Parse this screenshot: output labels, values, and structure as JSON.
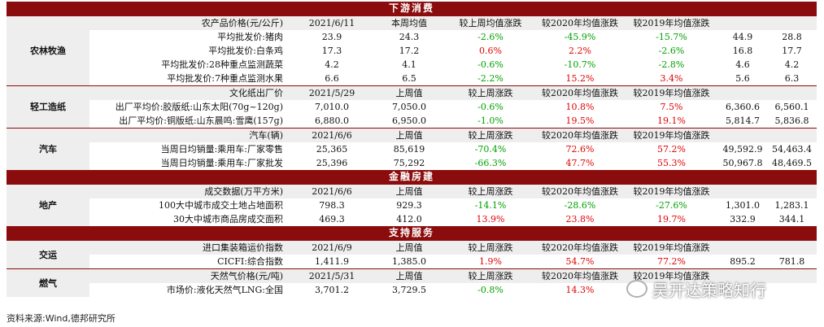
{
  "sections": {
    "downstream": "下游消费",
    "finance": "金融房建",
    "support": "支持服务"
  },
  "agri": {
    "category": "农林牧渔",
    "header": [
      "农产品价格(元/公斤)",
      "2021/6/11",
      "本周均值",
      "较上周均值涨跌",
      "较2020年均值涨跌",
      "较2019年均值涨跌",
      "",
      ""
    ],
    "rows": [
      [
        "平均批发价:猪肉",
        "23.9",
        "24.3",
        "-2.6%",
        "-45.9%",
        "-15.7%",
        "44.9",
        "28.8"
      ],
      [
        "平均批发价:白条鸡",
        "17.3",
        "17.2",
        "0.6%",
        "2.2%",
        "-2.6%",
        "16.8",
        "17.7"
      ],
      [
        "平均批发价:28种重点监测蔬菜",
        "4.2",
        "4.1",
        "-0.6%",
        "-10.7%",
        "-2.8%",
        "4.6",
        "4.2"
      ],
      [
        "平均批发价:7种重点监测水果",
        "6.6",
        "6.5",
        "-2.2%",
        "15.2%",
        "3.4%",
        "5.6",
        "6.3"
      ]
    ]
  },
  "paper": {
    "category": "轻工造纸",
    "header": [
      "文化纸出厂价",
      "2021/5/29",
      "上周值",
      "较上周涨跌",
      "较2020年均值涨跌",
      "较2019年均值涨跌",
      "",
      ""
    ],
    "rows": [
      [
        "出厂平均价:胶版纸:山东太阳(70g~120g)",
        "7,010.0",
        "7,050.0",
        "-0.6%",
        "10.8%",
        "7.5%",
        "6,360.6",
        "6,560.1"
      ],
      [
        "出厂平均价:铜版纸:山东晨鸣:雪鹰(157g)",
        "6,880.0",
        "6,950.0",
        "-1.0%",
        "19.5%",
        "19.1%",
        "5,814.7",
        "5,836.8"
      ]
    ]
  },
  "auto": {
    "category": "汽车",
    "header": [
      "汽车(辆)",
      "2021/6/6",
      "上周值",
      "较上周涨跌",
      "较2020年均值涨跌",
      "较2019年均值涨跌",
      "",
      ""
    ],
    "rows": [
      [
        "当周日均销量:乘用车:厂家零售",
        "25,365",
        "85,619",
        "-70.4%",
        "72.6%",
        "57.2%",
        "49,592.9",
        "54,463.4"
      ],
      [
        "当周日均销量:乘用车:厂家批发",
        "25,396",
        "75,292",
        "-66.3%",
        "47.7%",
        "55.3%",
        "50,967.8",
        "48,469.5"
      ]
    ]
  },
  "realestate": {
    "category": "地产",
    "header": [
      "成交数据(万平方米)",
      "2021/6/6",
      "上周值",
      "较上周涨跌",
      "较2020年均值涨跌",
      "较2019年均值涨跌",
      "",
      ""
    ],
    "rows": [
      [
        "100大中城市成交土地占地面积",
        "798.3",
        "929.3",
        "-14.1%",
        "-28.6%",
        "-27.6%",
        "1,301.0",
        "1,283.1"
      ],
      [
        "30大中城市商品房成交面积",
        "469.3",
        "412.0",
        "13.9%",
        "23.8%",
        "19.7%",
        "332.9",
        "344.1"
      ]
    ]
  },
  "transport": {
    "category": "交运",
    "header": [
      "进口集装箱运价指数",
      "2021/6/9",
      "上周值",
      "较上周涨跌",
      "较2020年均值涨跌",
      "较2019年均值涨跌",
      "",
      ""
    ],
    "rows": [
      [
        "CICFI:综合指数",
        "1,411.9",
        "1,385.0",
        "1.9%",
        "54.7%",
        "77.2%",
        "895.2",
        "781.8"
      ]
    ]
  },
  "gas": {
    "category": "燃气",
    "header": [
      "天然气价格(元/吨)",
      "2021/5/31",
      "上周值",
      "较上周涨跌",
      "较2020年均值涨跌",
      "较2019年均值涨跌",
      "",
      ""
    ],
    "rows": [
      [
        "市场价:液化天然气LNG:全国",
        "3,701.2",
        "3,729.5",
        "-0.8%",
        "14.3%",
        "",
        "",
        ""
      ]
    ]
  },
  "colors": {
    "band": "#8b0c0c",
    "up": "#e00000",
    "down": "#00a000",
    "header_bg": "#eeeeee"
  },
  "source": "资料来源:Wind,德邦研究所",
  "watermark": {
    "icon": "wechat-icon",
    "text": "吴开达策略知行"
  }
}
